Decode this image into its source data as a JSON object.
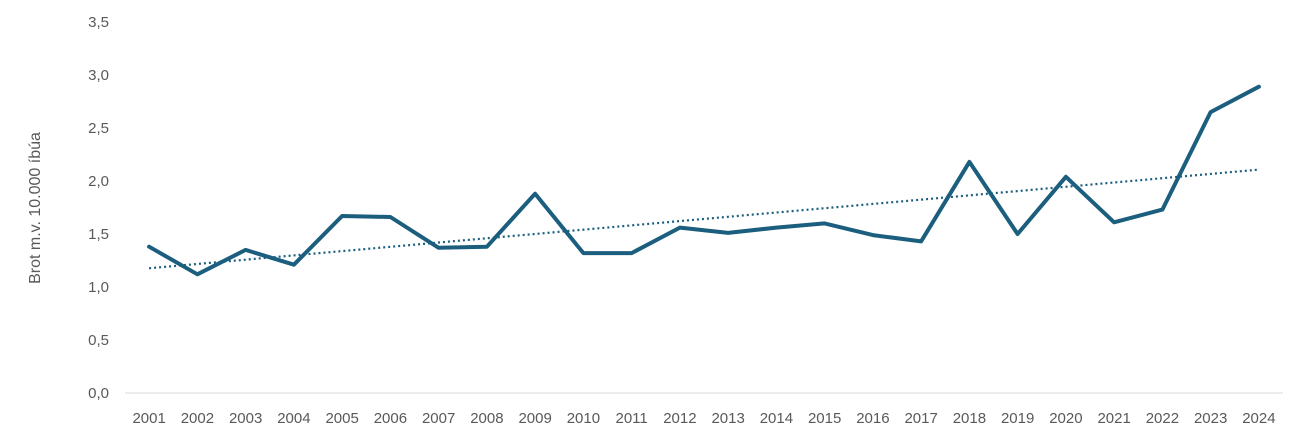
{
  "chart_data": {
    "type": "line",
    "title": "",
    "xlabel": "",
    "ylabel": "Brot m.v. 10.000 íbúa",
    "categories": [
      "2001",
      "2002",
      "2003",
      "2004",
      "2005",
      "2006",
      "2007",
      "2008",
      "2009",
      "2010",
      "2011",
      "2012",
      "2013",
      "2014",
      "2015",
      "2016",
      "2017",
      "2018",
      "2019",
      "2020",
      "2021",
      "2022",
      "2023",
      "2024"
    ],
    "series": [
      {
        "values": [
          1.38,
          1.12,
          1.35,
          1.21,
          1.67,
          1.66,
          1.37,
          1.38,
          1.88,
          1.32,
          1.32,
          1.56,
          1.51,
          1.56,
          1.6,
          1.49,
          1.43,
          2.18,
          1.5,
          2.04,
          1.61,
          1.73,
          2.65,
          2.89
        ],
        "color": "#1b5e7e"
      }
    ],
    "trendline": {
      "type": "linear",
      "style": "dotted",
      "color": "#1b5e7e"
    },
    "ylim": [
      0,
      3.5
    ],
    "yticks": [
      "0,0",
      "0,5",
      "1,0",
      "1,5",
      "2,0",
      "2,5",
      "3,0",
      "3,5"
    ],
    "grid": false,
    "legend": "none"
  }
}
